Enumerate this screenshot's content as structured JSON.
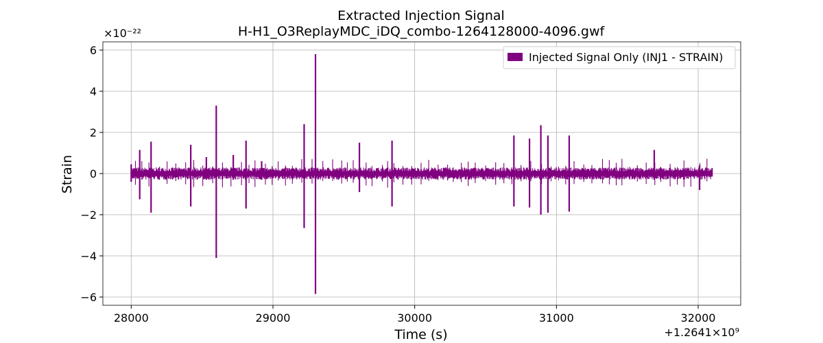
{
  "chart_data": {
    "type": "line",
    "title": "Extracted Injection Signal",
    "subtitle": "H-H1_O3ReplayMDC_iDQ_combo-1264128000-4096.gwf",
    "xlabel": "Time (s)",
    "ylabel": "Strain",
    "x_offset_text": "+1.2641×10⁹",
    "y_multiplier_text": "×10⁻²²",
    "xlim": [
      27800,
      32300
    ],
    "ylim": [
      -6.4,
      6.4
    ],
    "xticks": [
      28000,
      29000,
      30000,
      31000,
      32000
    ],
    "xtick_labels": [
      "28000",
      "29000",
      "30000",
      "31000",
      "32000"
    ],
    "yticks": [
      -6,
      -4,
      -2,
      0,
      2,
      4,
      6
    ],
    "ytick_labels": [
      "−6",
      "−4",
      "−2",
      "0",
      "2",
      "4",
      "6"
    ],
    "grid": true,
    "legend_position": "top-right",
    "series": [
      {
        "name": "Injected Signal Only (INJ1 - STRAIN)",
        "color": "#800080",
        "x_range": [
          28000,
          32100
        ],
        "baseline_envelope": 0.3,
        "spikes": [
          {
            "x": 28000,
            "max": 0.45,
            "min": -0.4
          },
          {
            "x": 28060,
            "max": 1.15,
            "min": -1.25
          },
          {
            "x": 28140,
            "max": 1.55,
            "min": -1.9
          },
          {
            "x": 28420,
            "max": 1.4,
            "min": -1.6
          },
          {
            "x": 28530,
            "max": 0.8,
            "min": -0.3
          },
          {
            "x": 28600,
            "max": 3.3,
            "min": -4.1
          },
          {
            "x": 28720,
            "max": 0.9,
            "min": -0.3
          },
          {
            "x": 28810,
            "max": 1.6,
            "min": -1.7
          },
          {
            "x": 28920,
            "max": 0.6,
            "min": -0.3
          },
          {
            "x": 29220,
            "max": 2.4,
            "min": -2.65
          },
          {
            "x": 29300,
            "max": 5.8,
            "min": -5.85
          },
          {
            "x": 29610,
            "max": 1.5,
            "min": -0.9
          },
          {
            "x": 29840,
            "max": 1.6,
            "min": -1.6
          },
          {
            "x": 30700,
            "max": 1.85,
            "min": -1.6
          },
          {
            "x": 30810,
            "max": 1.7,
            "min": -1.65
          },
          {
            "x": 30890,
            "max": 2.35,
            "min": -2.0
          },
          {
            "x": 30940,
            "max": 1.85,
            "min": -1.9
          },
          {
            "x": 31090,
            "max": 1.85,
            "min": -1.85
          },
          {
            "x": 31690,
            "max": 1.15,
            "min": -0.3
          },
          {
            "x": 32010,
            "max": 0.4,
            "min": -0.8
          }
        ]
      }
    ]
  }
}
